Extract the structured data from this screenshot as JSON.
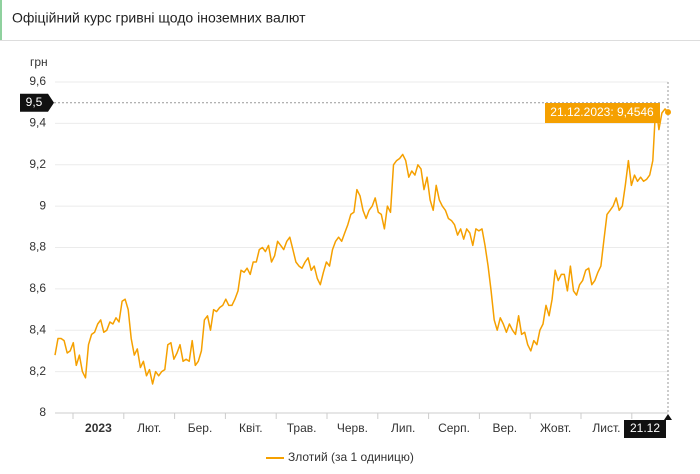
{
  "chart_data": {
    "type": "line",
    "title": "Офіційний курс гривні щодо іноземних валют",
    "y_label": "грн",
    "x_labels": [
      "2023",
      "Лют.",
      "Бер.",
      "Квіт.",
      "Трав.",
      "Черв.",
      "Лип.",
      "Серп.",
      "Вер.",
      "Жовт.",
      "Лист."
    ],
    "x_marker": "21.12",
    "tooltip": "21.12.2023: 9,4546",
    "crosshair": {
      "value": 9.5,
      "label": "9,5"
    },
    "ylim": [
      8,
      9.6
    ],
    "yticks": [
      8,
      {
        "value": 8.2,
        "label": "8,2"
      },
      {
        "value": 8.4,
        "label": "8,4"
      },
      {
        "value": 8.6,
        "label": "8,6"
      },
      {
        "value": 8.8,
        "label": "8,8"
      },
      9,
      {
        "value": 9.2,
        "label": "9,2"
      },
      {
        "value": 9.4,
        "label": "9,4"
      },
      {
        "value": 9.6,
        "label": "9,6"
      }
    ],
    "grid": true,
    "series": [
      {
        "name": "Злотий (за 1 одиницю)",
        "color": "#f5a000",
        "values": [
          8.28,
          8.36,
          8.36,
          8.35,
          8.29,
          8.3,
          8.34,
          8.23,
          8.28,
          8.2,
          8.17,
          8.33,
          8.38,
          8.39,
          8.43,
          8.45,
          8.39,
          8.4,
          8.44,
          8.43,
          8.46,
          8.44,
          8.54,
          8.55,
          8.5,
          8.36,
          8.28,
          8.31,
          8.22,
          8.25,
          8.18,
          8.21,
          8.14,
          8.2,
          8.18,
          8.2,
          8.21,
          8.33,
          8.34,
          8.26,
          8.29,
          8.33,
          8.25,
          8.26,
          8.25,
          8.35,
          8.23,
          8.25,
          8.3,
          8.45,
          8.47,
          8.4,
          8.5,
          8.49,
          8.51,
          8.52,
          8.55,
          8.52,
          8.52,
          8.55,
          8.59,
          8.69,
          8.68,
          8.7,
          8.67,
          8.73,
          8.73,
          8.79,
          8.8,
          8.78,
          8.81,
          8.73,
          8.76,
          8.83,
          8.81,
          8.79,
          8.83,
          8.85,
          8.79,
          8.73,
          8.71,
          8.7,
          8.73,
          8.75,
          8.69,
          8.71,
          8.65,
          8.62,
          8.68,
          8.73,
          8.71,
          8.79,
          8.83,
          8.85,
          8.83,
          8.87,
          8.91,
          8.96,
          8.97,
          9.08,
          9.05,
          8.98,
          8.94,
          8.98,
          9.0,
          9.04,
          8.97,
          8.96,
          8.89,
          9.0,
          8.97,
          9.2,
          9.22,
          9.23,
          9.25,
          9.22,
          9.14,
          9.17,
          9.15,
          9.2,
          9.18,
          9.08,
          9.14,
          9.03,
          8.98,
          9.1,
          9.03,
          9.0,
          8.98,
          8.94,
          8.93,
          8.91,
          8.86,
          8.89,
          8.84,
          8.89,
          8.87,
          8.81,
          8.89,
          8.88,
          8.89,
          8.81,
          8.71,
          8.59,
          8.45,
          8.4,
          8.46,
          8.43,
          8.39,
          8.43,
          8.4,
          8.38,
          8.47,
          8.38,
          8.39,
          8.33,
          8.3,
          8.35,
          8.33,
          8.4,
          8.43,
          8.52,
          8.47,
          8.55,
          8.69,
          8.64,
          8.67,
          8.67,
          8.59,
          8.71,
          8.59,
          8.57,
          8.62,
          8.64,
          8.69,
          8.7,
          8.62,
          8.64,
          8.68,
          8.71,
          8.84,
          8.96,
          8.98,
          9.0,
          9.04,
          8.98,
          9.0,
          9.1,
          9.22,
          9.1,
          9.15,
          9.12,
          9.14,
          9.12,
          9.13,
          9.15,
          9.22,
          9.49,
          9.37,
          9.45,
          9.47,
          9.4546
        ]
      }
    ]
  }
}
